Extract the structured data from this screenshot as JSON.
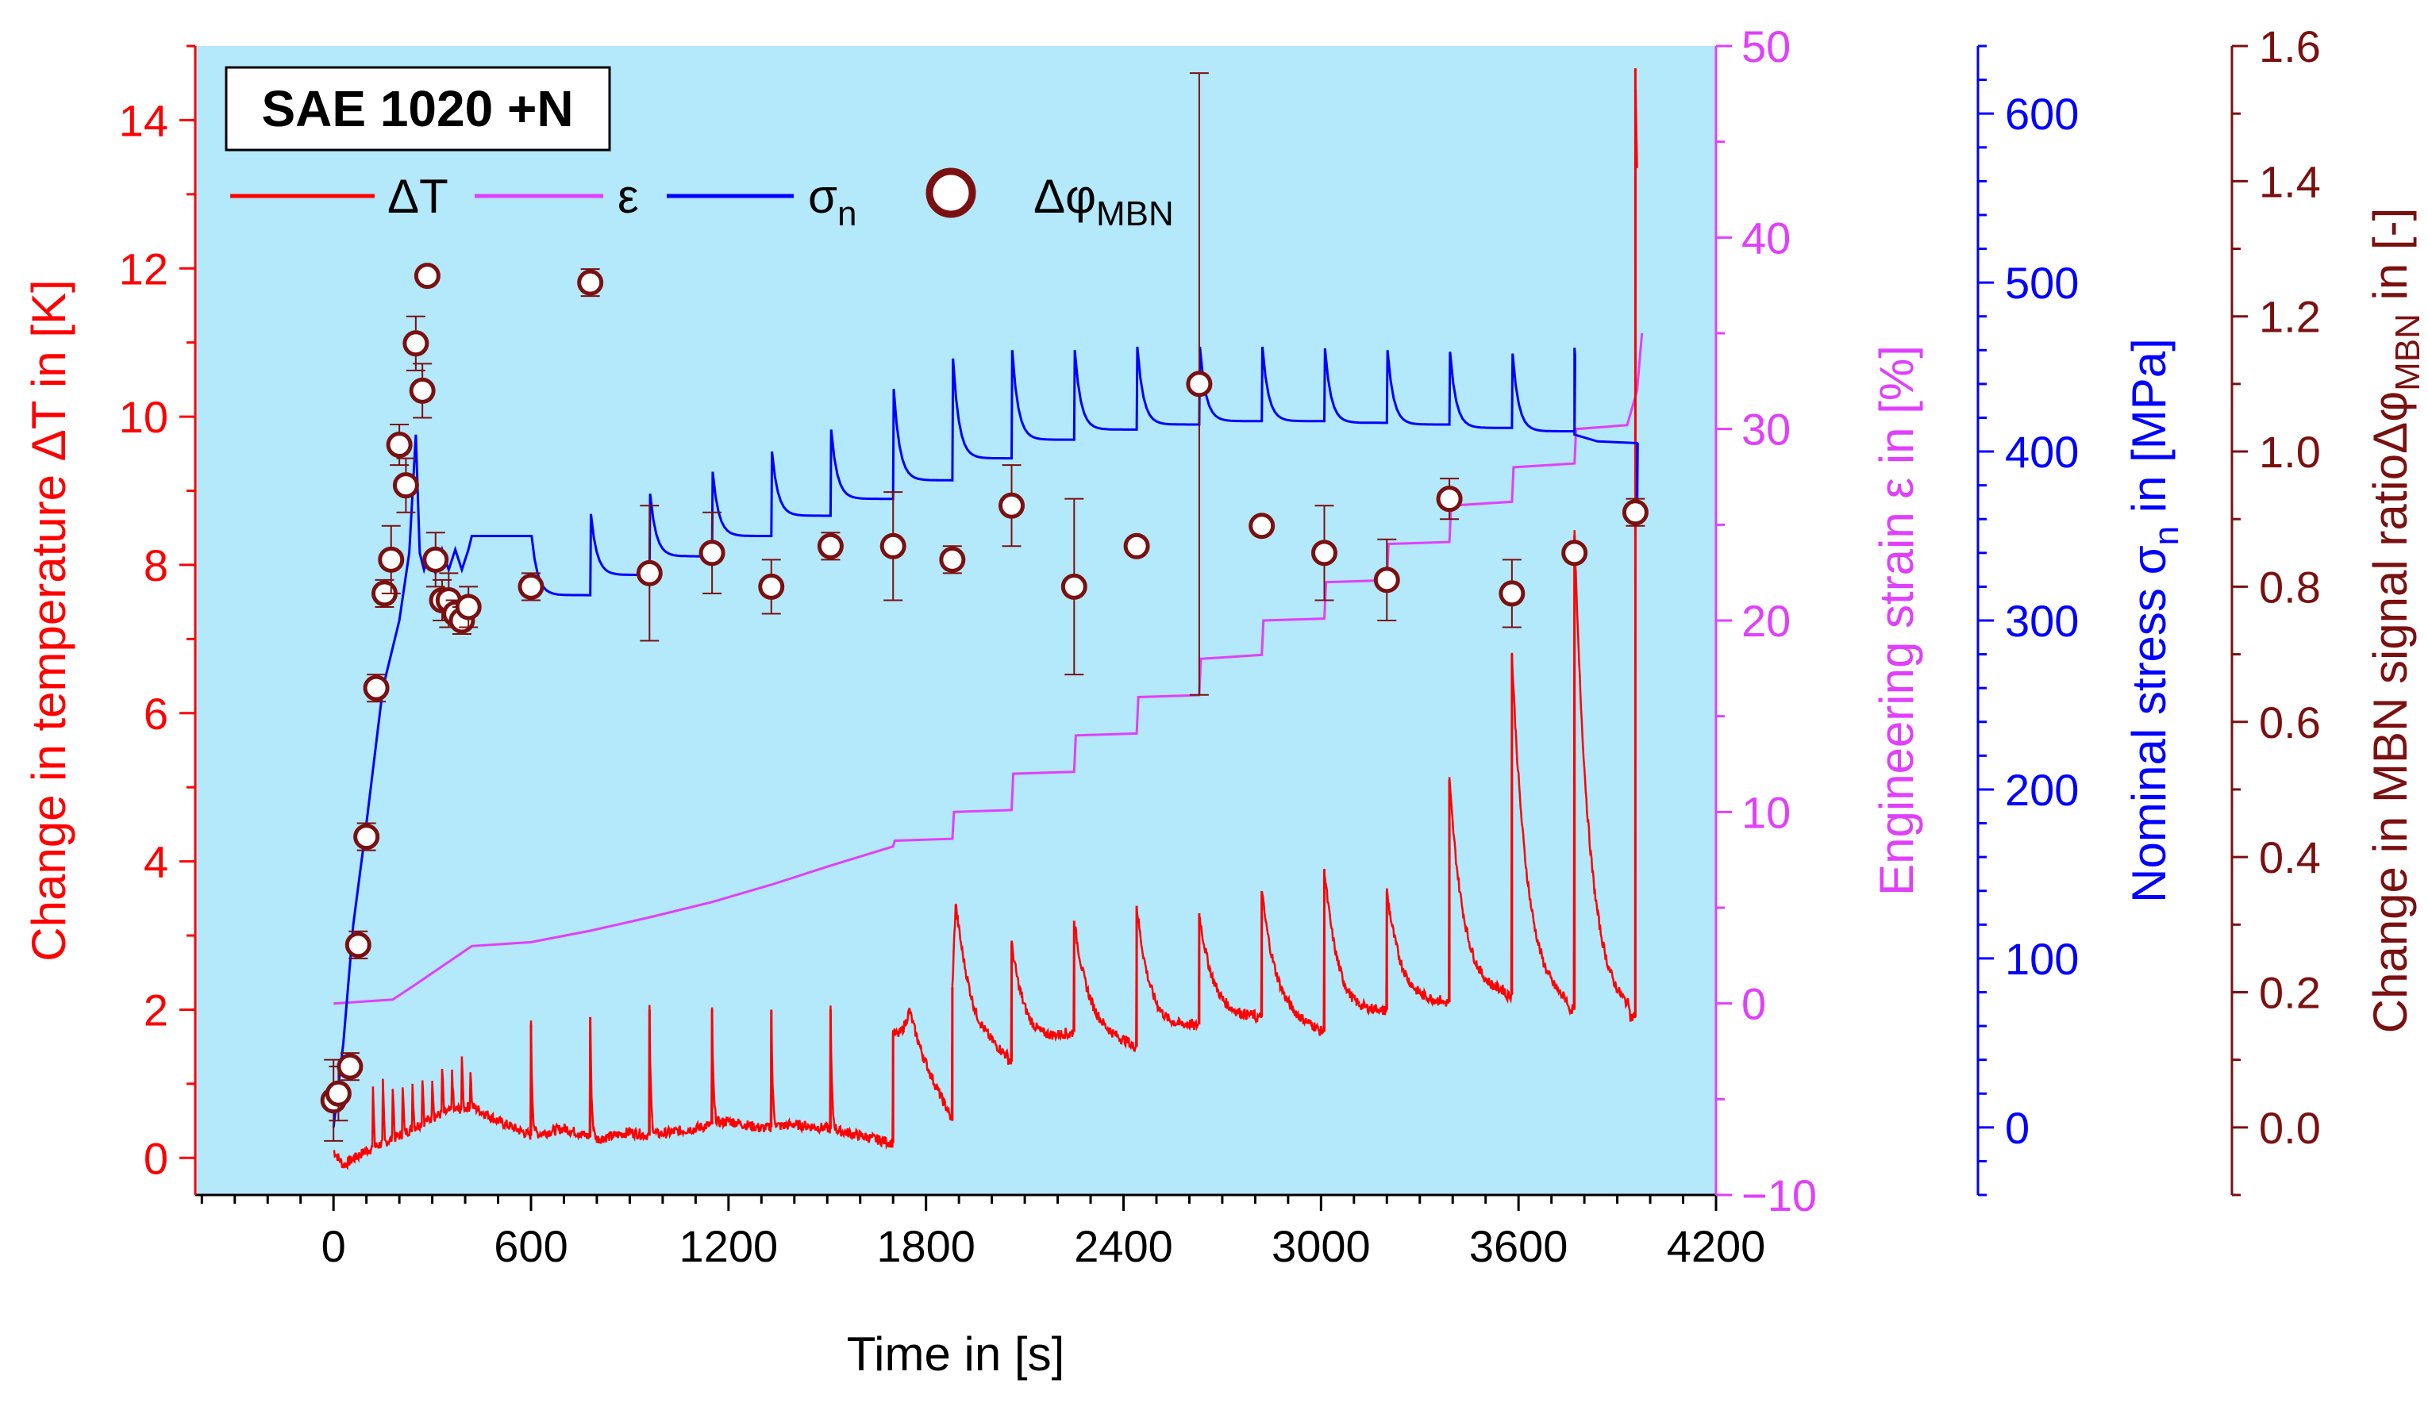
{
  "chart_data": {
    "type": "line",
    "title": "SAE 1020 +N",
    "xlabel": "Time in [s]",
    "xlim": [
      -420,
      4200
    ],
    "xticks": [
      0,
      600,
      1200,
      1800,
      2400,
      3000,
      3600,
      4200
    ],
    "axes": {
      "dT": {
        "label": "Change in temperature ΔT in [K]",
        "ylim": [
          -0.5,
          15
        ],
        "ticks": [
          0,
          2,
          4,
          6,
          8,
          10,
          12,
          14
        ],
        "color": "#ff0000"
      },
      "eps": {
        "label": "Engineering strain ε in [%]",
        "ylim": [
          -10,
          50
        ],
        "ticks": [
          -10,
          0,
          10,
          20,
          30,
          40,
          50
        ],
        "color": "#e040fb"
      },
      "sigma": {
        "label_main": "Nominal stress σ",
        "label_sub": "n",
        "label_tail": " in [MPa]",
        "ylim": [
          -40,
          640
        ],
        "ticks": [
          0,
          100,
          200,
          300,
          400,
          500,
          600
        ],
        "color": "#0000ff"
      },
      "mbn": {
        "label_main": "Change in MBN signal ratioΔφ",
        "label_sub": "MBN",
        "label_tail": " in [-]",
        "ylim": [
          -0.1,
          1.6
        ],
        "ticks": [
          0.0,
          0.2,
          0.4,
          0.6,
          0.8,
          1.0,
          1.2,
          1.4,
          1.6
        ],
        "color": "#7b1010"
      }
    },
    "legend": {
      "position": "top-left",
      "items": [
        {
          "name": "ΔT",
          "color": "#ff0000",
          "kind": "line"
        },
        {
          "name": "ε",
          "color": "#e040fb",
          "kind": "line"
        },
        {
          "name": "σ",
          "sub": "n",
          "color": "#0000ff",
          "kind": "line"
        },
        {
          "name": "Δφ",
          "sub": "MBN",
          "color": "#7b1010",
          "kind": "circle"
        }
      ]
    },
    "step_starts": [
      0,
      200,
      400,
      600,
      780,
      960,
      1150,
      1330,
      1510,
      1700,
      1880,
      2060,
      2250,
      2440,
      2630,
      2820,
      3010,
      3200,
      3390,
      3580,
      3770,
      3950
    ],
    "series": {
      "strain": {
        "name": "ε",
        "points": [
          [
            0,
            0
          ],
          [
            180,
            0.2
          ],
          [
            250,
            1
          ],
          [
            420,
            3
          ],
          [
            600,
            3.2
          ],
          [
            780,
            3.8
          ],
          [
            960,
            4.5
          ],
          [
            1150,
            5.3
          ],
          [
            1330,
            6.2
          ],
          [
            1510,
            7.2
          ],
          [
            1700,
            8.2
          ],
          [
            1705,
            8.5
          ],
          [
            1880,
            8.6
          ],
          [
            1885,
            10
          ],
          [
            2060,
            10.1
          ],
          [
            2065,
            12
          ],
          [
            2250,
            12.1
          ],
          [
            2255,
            14
          ],
          [
            2440,
            14.1
          ],
          [
            2445,
            16
          ],
          [
            2630,
            16.1
          ],
          [
            2635,
            18
          ],
          [
            2820,
            18.2
          ],
          [
            2825,
            20
          ],
          [
            3010,
            20.1
          ],
          [
            3015,
            22
          ],
          [
            3200,
            22.1
          ],
          [
            3205,
            24
          ],
          [
            3390,
            24.1
          ],
          [
            3395,
            26
          ],
          [
            3580,
            26.2
          ],
          [
            3585,
            28
          ],
          [
            3770,
            28.2
          ],
          [
            3775,
            30
          ],
          [
            3930,
            30.2
          ],
          [
            3960,
            32
          ],
          [
            3975,
            35
          ]
        ]
      },
      "stress": {
        "name": "σn",
        "points": [
          [
            0,
            0
          ],
          [
            30,
            50
          ],
          [
            60,
            120
          ],
          [
            100,
            180
          ],
          [
            150,
            260
          ],
          [
            200,
            300
          ],
          [
            230,
            340
          ],
          [
            250,
            410
          ],
          [
            262,
            340
          ],
          [
            275,
            330
          ],
          [
            290,
            340
          ],
          [
            310,
            328
          ],
          [
            330,
            342
          ],
          [
            350,
            330
          ],
          [
            370,
            342
          ],
          [
            390,
            330
          ],
          [
            410,
            342
          ],
          [
            420,
            350
          ]
        ],
        "steps": [
          [
            600,
            315,
            350
          ],
          [
            780,
            327,
            363
          ],
          [
            960,
            338,
            375
          ],
          [
            1150,
            350,
            388
          ],
          [
            1330,
            362,
            400
          ],
          [
            1510,
            372,
            413
          ],
          [
            1700,
            383,
            437
          ],
          [
            1880,
            396,
            455
          ],
          [
            2060,
            407,
            460
          ],
          [
            2250,
            413,
            460
          ],
          [
            2440,
            416,
            462
          ],
          [
            2630,
            418,
            462
          ],
          [
            2820,
            418,
            462
          ],
          [
            3010,
            417,
            461
          ],
          [
            3200,
            416,
            460
          ],
          [
            3390,
            414,
            459
          ],
          [
            3580,
            412,
            458
          ],
          [
            3770,
            410,
            456
          ]
        ],
        "tail": [
          [
            3770,
            410
          ],
          [
            3840,
            406
          ],
          [
            3960,
            405
          ],
          [
            3960,
            360
          ],
          [
            3962,
            405
          ]
        ]
      },
      "temperature": {
        "name": "ΔT",
        "points": [
          [
            0,
            0.1
          ],
          [
            30,
            -0.1
          ],
          [
            100,
            0.1
          ],
          [
            200,
            0.3
          ],
          [
            280,
            0.5
          ],
          [
            330,
            0.6
          ],
          [
            420,
            0.7
          ],
          [
            500,
            0.5
          ],
          [
            600,
            0.3
          ],
          [
            700,
            0.4
          ],
          [
            800,
            0.25
          ],
          [
            900,
            0.35
          ],
          [
            960,
            0.3
          ],
          [
            1100,
            0.4
          ],
          [
            1200,
            0.5
          ],
          [
            1300,
            0.4
          ],
          [
            1400,
            0.45
          ],
          [
            1500,
            0.4
          ],
          [
            1600,
            0.3
          ],
          [
            1700,
            0.2
          ],
          [
            1750,
            1.5
          ],
          [
            1880,
            0.5
          ],
          [
            1890,
            2.0
          ],
          [
            1950,
            1.6
          ],
          [
            2060,
            1.3
          ],
          [
            2250,
            1.7
          ],
          [
            2440,
            1.5
          ],
          [
            2630,
            1.8
          ],
          [
            2820,
            1.9
          ],
          [
            3010,
            1.7
          ],
          [
            3200,
            2.0
          ],
          [
            3390,
            2.1
          ],
          [
            3580,
            2.2
          ],
          [
            3770,
            2.0
          ],
          [
            3950,
            1.9
          ]
        ],
        "spikes": [
          [
            600,
            1.8
          ],
          [
            780,
            1.9
          ],
          [
            960,
            2.0
          ],
          [
            1150,
            2.0
          ],
          [
            1330,
            2.0
          ],
          [
            1510,
            2.0
          ],
          [
            1700,
            1.7
          ],
          [
            1880,
            2.3
          ],
          [
            2060,
            2.9
          ],
          [
            2250,
            3.2
          ],
          [
            2440,
            3.4
          ],
          [
            2630,
            3.3
          ],
          [
            2820,
            3.6
          ],
          [
            3010,
            3.9
          ],
          [
            3200,
            3.6
          ],
          [
            3390,
            5.1
          ],
          [
            3580,
            6.8
          ],
          [
            3770,
            8.4
          ],
          [
            3955,
            14.7
          ]
        ],
        "small_spikes": [
          [
            120,
            0.9
          ],
          [
            150,
            1.0
          ],
          [
            180,
            1.0
          ],
          [
            210,
            1.0
          ],
          [
            240,
            1.0
          ],
          [
            270,
            1.1
          ],
          [
            300,
            1.1
          ],
          [
            330,
            1.2
          ],
          [
            360,
            1.2
          ],
          [
            390,
            1.3
          ],
          [
            415,
            1.3
          ]
        ]
      },
      "mbn": {
        "name": "ΔφMBN",
        "points": [
          [
            0,
            0.04,
            0.06
          ],
          [
            15,
            0.05,
            0.04
          ],
          [
            50,
            0.09,
            0.02
          ],
          [
            75,
            0.27,
            0.02
          ],
          [
            100,
            0.43,
            0.02
          ],
          [
            130,
            0.65,
            0.02
          ],
          [
            155,
            0.79,
            0.02
          ],
          [
            175,
            0.84,
            0.05
          ],
          [
            200,
            1.01,
            0.03
          ],
          [
            220,
            0.95,
            0.04
          ],
          [
            250,
            1.16,
            0.04
          ],
          [
            270,
            1.09,
            0.04
          ],
          [
            285,
            1.26,
            0.01
          ],
          [
            310,
            0.84,
            0.04
          ],
          [
            330,
            0.78,
            0.03
          ],
          [
            350,
            0.78,
            0.04
          ],
          [
            370,
            0.76,
            0.02
          ],
          [
            390,
            0.75,
            0.02
          ],
          [
            410,
            0.77,
            0.03
          ],
          [
            600,
            0.8,
            0.02
          ],
          [
            780,
            1.25,
            0.02
          ],
          [
            960,
            0.82,
            0.1
          ],
          [
            1150,
            0.85,
            0.06
          ],
          [
            1330,
            0.8,
            0.04
          ],
          [
            1510,
            0.86,
            0.02
          ],
          [
            1700,
            0.86,
            0.08
          ],
          [
            1880,
            0.84,
            0.02
          ],
          [
            2060,
            0.92,
            0.06
          ],
          [
            2250,
            0.8,
            0.13
          ],
          [
            2440,
            0.86,
            0.01
          ],
          [
            2630,
            1.1,
            0.46
          ],
          [
            2820,
            0.89,
            0.01
          ],
          [
            3010,
            0.85,
            0.07
          ],
          [
            3200,
            0.81,
            0.06
          ],
          [
            3390,
            0.93,
            0.03
          ],
          [
            3580,
            0.79,
            0.05
          ],
          [
            3770,
            0.85,
            0.01
          ],
          [
            3955,
            0.91,
            0.02
          ]
        ]
      }
    }
  }
}
